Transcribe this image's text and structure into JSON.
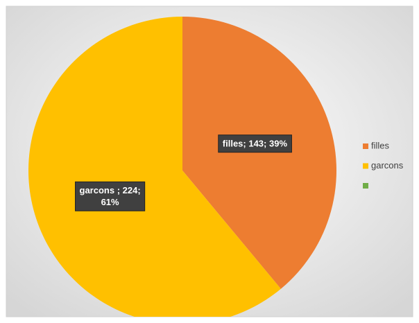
{
  "chart_data": {
    "type": "pie",
    "categories": [
      "filles",
      "garcons",
      null
    ],
    "values": [
      143,
      224,
      null
    ],
    "value_labels": [
      "filles; 143; 39%",
      "garcons ; 224; 61%",
      null
    ],
    "colors": [
      "#ed7d31",
      "#ffc000",
      "#70ad47"
    ],
    "legend": "right"
  }
}
